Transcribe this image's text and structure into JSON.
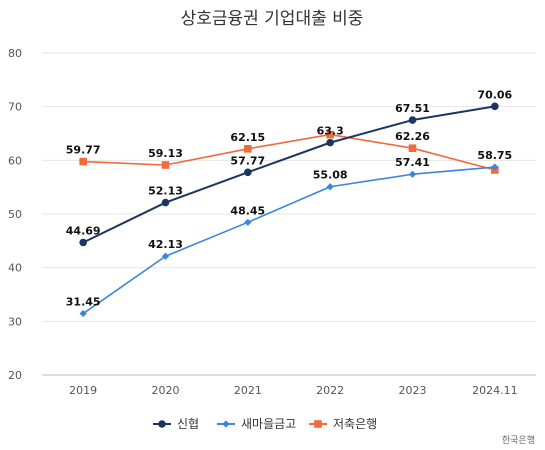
{
  "chart_data": {
    "type": "line",
    "title": "상호금융권 기업대출 비중",
    "categories": [
      "2019",
      "2020",
      "2021",
      "2022",
      "2023",
      "2024.11"
    ],
    "ylim": [
      20,
      80
    ],
    "yticks": [
      "20",
      "30",
      "40",
      "50",
      "60",
      "70",
      "80"
    ],
    "grid": true,
    "legend_position": "bottom-center",
    "source": "한국은행",
    "series": [
      {
        "name": "신협",
        "color": "#1c3563",
        "marker": "circle",
        "values": [
          44.69,
          52.13,
          57.77,
          63.3,
          67.51,
          70.06
        ],
        "labels": [
          "44.69",
          "52.13",
          "57.77",
          "63.3",
          "67.51",
          "70.06"
        ]
      },
      {
        "name": "새마을금고",
        "color": "#3a86d9",
        "marker": "diamond",
        "values": [
          31.45,
          42.13,
          48.45,
          55.08,
          57.41,
          58.75
        ],
        "labels": [
          "31.45",
          "42.13",
          "48.45",
          "55.08",
          "57.41",
          "58.75"
        ]
      },
      {
        "name": "저축은행",
        "color": "#ef6b3b",
        "marker": "square",
        "values": [
          59.77,
          59.13,
          62.15,
          64.8,
          62.26,
          58.2
        ],
        "labels": [
          "59.77",
          "59.13",
          "62.15",
          "",
          "62.26",
          ""
        ]
      }
    ]
  }
}
